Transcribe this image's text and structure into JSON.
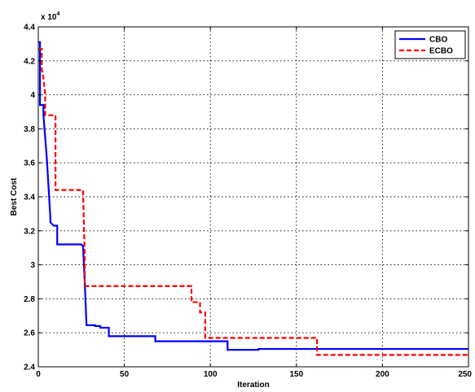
{
  "chart_data": {
    "type": "line",
    "title": "",
    "xlabel": "Iteration",
    "ylabel": "Best Cost",
    "y_multiplier_label": "x 10",
    "y_multiplier_exponent": "4",
    "xlim": [
      0,
      250
    ],
    "ylim": [
      2.4,
      4.4
    ],
    "xticks": [
      0,
      50,
      100,
      150,
      200,
      250
    ],
    "yticks": [
      2.4,
      2.6,
      2.8,
      3.0,
      3.2,
      3.4,
      3.6,
      3.8,
      4.0,
      4.2,
      4.4
    ],
    "ytick_labels": [
      "2.4",
      "2.6",
      "2.8",
      "3",
      "3.2",
      "3.4",
      "3.6",
      "3.8",
      "4",
      "4.2",
      "4.4"
    ],
    "grid": true,
    "legend_position": "top-right",
    "series": [
      {
        "name": "CBO",
        "color": "#0000ff",
        "style": "solid",
        "x": [
          0,
          1,
          1,
          3,
          3,
          4,
          5,
          6,
          7,
          7,
          9,
          11,
          11,
          25,
          26,
          27,
          28,
          28,
          33,
          33,
          36,
          36,
          41,
          41,
          68,
          68,
          110,
          110,
          128,
          128,
          250
        ],
        "y": [
          4.31,
          4.31,
          3.94,
          3.94,
          3.88,
          3.75,
          3.62,
          3.45,
          3.28,
          3.25,
          3.23,
          3.23,
          3.12,
          3.12,
          3.11,
          2.9,
          2.65,
          2.645,
          2.645,
          2.64,
          2.64,
          2.63,
          2.63,
          2.58,
          2.58,
          2.55,
          2.55,
          2.5,
          2.5,
          2.505,
          2.505
        ]
      },
      {
        "name": "ECBO",
        "color": "#ff0000",
        "style": "dashed",
        "x": [
          0,
          2,
          2,
          3,
          4,
          4,
          10,
          10,
          26,
          27,
          27,
          89,
          89,
          94,
          94,
          97,
          97,
          162,
          162,
          250
        ],
        "y": [
          4.27,
          4.27,
          4.15,
          4.1,
          4.0,
          3.88,
          3.88,
          3.44,
          3.44,
          3.05,
          2.875,
          2.875,
          2.78,
          2.78,
          2.72,
          2.72,
          2.57,
          2.57,
          2.47,
          2.47
        ]
      }
    ]
  }
}
